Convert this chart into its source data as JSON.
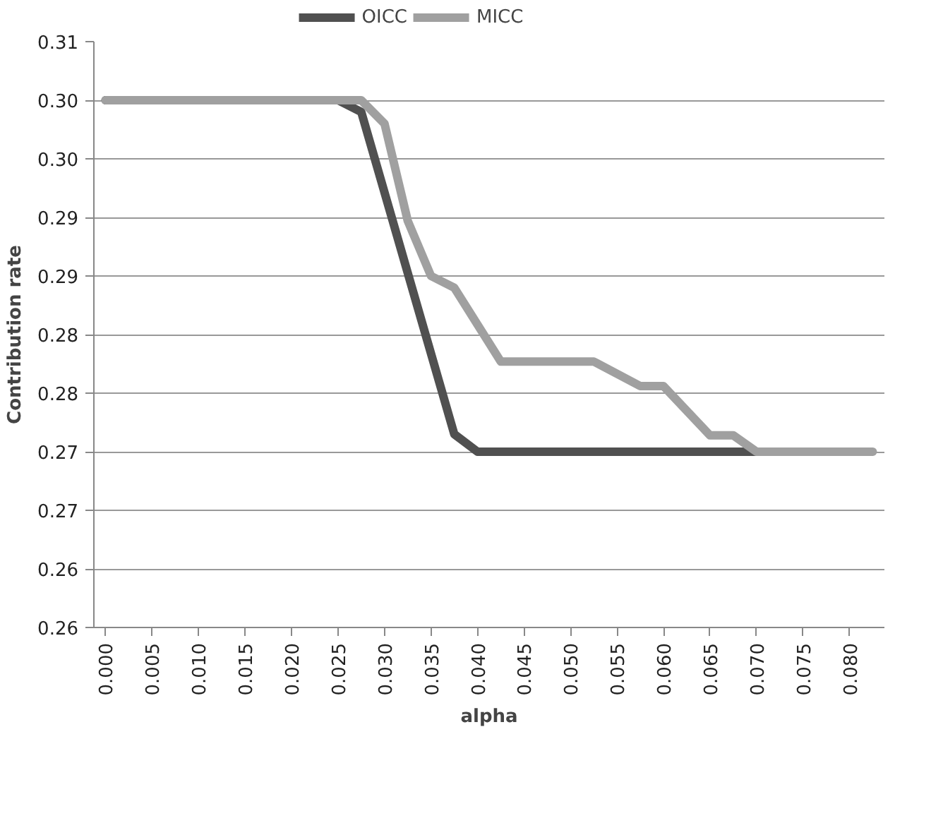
{
  "chart_data": {
    "type": "line",
    "xlabel": "alpha",
    "ylabel": "Contribution rate",
    "xlim": [
      -0.00125,
      0.08375
    ],
    "xticks": [
      {
        "value": 0,
        "label": "0.000"
      },
      {
        "value": 0.005,
        "label": "0.005"
      },
      {
        "value": 0.01,
        "label": "0.010"
      },
      {
        "value": 0.015,
        "label": "0.015"
      },
      {
        "value": 0.02,
        "label": "0.020"
      },
      {
        "value": 0.025,
        "label": "0.025"
      },
      {
        "value": 0.03,
        "label": "0.030"
      },
      {
        "value": 0.035,
        "label": "0.035"
      },
      {
        "value": 0.04,
        "label": "0.040"
      },
      {
        "value": 0.045,
        "label": "0.045"
      },
      {
        "value": 0.05,
        "label": "0.050"
      },
      {
        "value": 0.055,
        "label": "0.055"
      },
      {
        "value": 0.06,
        "label": "0.060"
      },
      {
        "value": 0.065,
        "label": "0.065"
      },
      {
        "value": 0.07,
        "label": "0.070"
      },
      {
        "value": 0.075,
        "label": "0.075"
      },
      {
        "value": 0.08,
        "label": "0.080"
      }
    ],
    "ylim": [
      0.26,
      0.31
    ],
    "yticks": [
      0.26,
      {
        "value": 0.265,
        "label": "0.26"
      },
      0.27,
      {
        "value": 0.275,
        "label": "0.27"
      },
      0.28,
      {
        "value": 0.285,
        "label": "0.28"
      },
      0.29,
      {
        "value": 0.295,
        "label": "0.29"
      },
      {
        "value": 0.3,
        "label": "0.30"
      },
      {
        "value": 0.305,
        "label": "0.30"
      },
      0.31
    ],
    "grid": "y",
    "legend": "top",
    "marker": "none",
    "line_style": "solid",
    "series": [
      {
        "name": "OICC",
        "color": "#505050",
        "x": [
          0,
          0.025,
          0.0275,
          0.0375,
          0.04,
          0.07
        ],
        "values": [
          0.305,
          0.305,
          0.304,
          0.2765,
          0.275,
          0.275
        ]
      },
      {
        "name": "MICC",
        "color": "#a0a0a0",
        "x": [
          0,
          0.0275,
          0.03,
          0.0325,
          0.035,
          0.0375,
          0.0425,
          0.0525,
          0.0575,
          0.06,
          0.065,
          0.0675,
          0.07,
          0.0825
        ],
        "values": [
          0.305,
          0.305,
          0.303,
          0.2947,
          0.29,
          0.289,
          0.2827,
          0.2827,
          0.2806,
          0.2806,
          0.2764,
          0.2764,
          0.275,
          0.275
        ]
      }
    ]
  }
}
